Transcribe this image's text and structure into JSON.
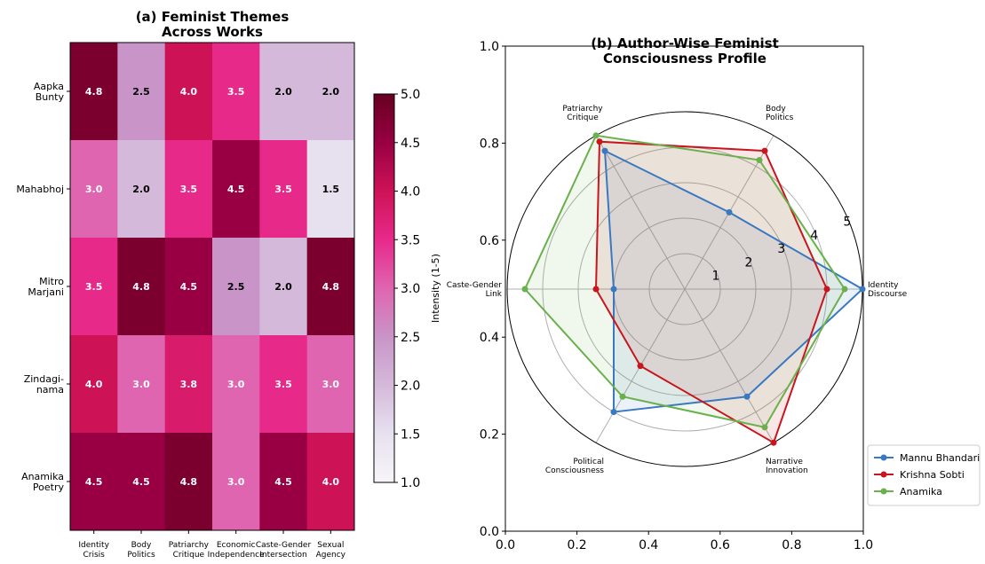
{
  "chart_data": [
    {
      "type": "heatmap",
      "title": "(a) Feminist Themes\nAcross Works",
      "rows": [
        "Aapka\nBunty",
        "Mahabhoj",
        "Mitro\nMarjani",
        "Zindagi-\nnama",
        "Anamika\nPoetry"
      ],
      "columns": [
        "Identity\nCrisis",
        "Body\nPolitics",
        "Patriarchy\nCritique",
        "Economic\nIndependence",
        "Caste-Gender\nIntersection",
        "Sexual\nAgency"
      ],
      "values": [
        [
          4.8,
          2.5,
          4.0,
          3.5,
          2.0,
          2.0
        ],
        [
          3.0,
          2.0,
          3.5,
          4.5,
          3.5,
          1.5
        ],
        [
          3.5,
          4.8,
          4.5,
          2.5,
          2.0,
          4.8
        ],
        [
          4.0,
          3.0,
          3.8,
          3.0,
          3.5,
          3.0
        ],
        [
          4.5,
          4.5,
          4.8,
          3.0,
          4.5,
          4.0
        ]
      ],
      "colorbar": {
        "label": "Intensity (1-5)",
        "min": 1.0,
        "max": 5.0,
        "ticks": [
          "1.0",
          "1.5",
          "2.0",
          "2.5",
          "3.0",
          "3.5",
          "4.0",
          "4.5",
          "5.0"
        ]
      },
      "colormap": "PuRd"
    },
    {
      "type": "radar",
      "title": "(b) Author-Wise Feminist\nConsciousness Profile",
      "axes": [
        "Identity\nDiscourse",
        "Body\nPolitics",
        "Patriarchy\nCritique",
        "Caste-Gender\nLink",
        "Political\nConsciousness",
        "Narrative\nInnovation"
      ],
      "rmax": 5,
      "rticks": [
        "1",
        "2",
        "3",
        "4",
        "5"
      ],
      "series": [
        {
          "name": "Mannu Bhandari",
          "color": "#3a78c0",
          "values": [
            5.0,
            2.5,
            4.5,
            2.0,
            4.0,
            3.5
          ]
        },
        {
          "name": "Krishna Sobti",
          "color": "#c7161e",
          "values": [
            4.0,
            4.5,
            4.8,
            2.5,
            2.5,
            5.0
          ]
        },
        {
          "name": "Anamika",
          "color": "#6ab04c",
          "values": [
            4.5,
            4.2,
            5.0,
            4.5,
            3.5,
            4.5
          ]
        }
      ],
      "legend_position": "lower-right outside",
      "background_axes": {
        "xticks": [
          "0.0",
          "0.2",
          "0.4",
          "0.6",
          "0.8",
          "1.0"
        ],
        "yticks": [
          "0.0",
          "0.2",
          "0.4",
          "0.6",
          "0.8",
          "1.0"
        ]
      }
    }
  ]
}
